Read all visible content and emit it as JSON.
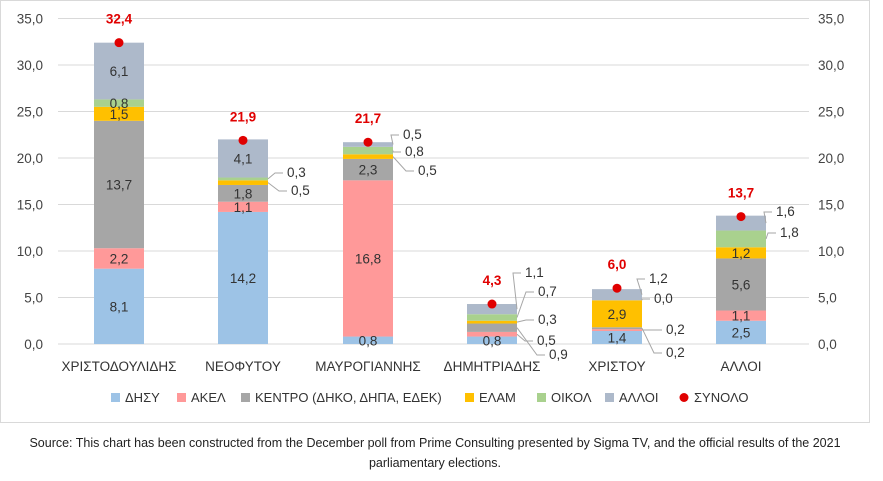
{
  "chart_data": {
    "type": "bar",
    "stacked": true,
    "title": "",
    "categories": [
      "ΧΡΙΣΤΟΔΟΥΛΙΔΗΣ",
      "ΝΕΟΦΥΤΟΥ",
      "ΜΑΥΡΟΓΙΑΝΝΗΣ",
      "ΔΗΜΗΤΡΙΑΔΗΣ",
      "ΧΡΙΣΤΟΥ",
      "ΑΛΛΟΙ"
    ],
    "series": [
      {
        "name": "ΔΗΣΥ",
        "color": "#9dc3e6",
        "values": [
          8.1,
          14.2,
          0.8,
          0.8,
          1.4,
          2.5
        ],
        "labels": [
          "8,1",
          "14,2",
          "0,8",
          "0,8",
          "1,4",
          "2,5"
        ]
      },
      {
        "name": "ΑΚΕΛ",
        "color": "#ff9999",
        "values": [
          2.2,
          1.1,
          16.8,
          0.5,
          0.2,
          1.1
        ],
        "labels": [
          "2,2",
          "1,1",
          "16,8",
          "0,5",
          "0,2",
          "1,1"
        ]
      },
      {
        "name": "ΚΕΝΤΡΟ (ΔΗΚΟ, ΔΗΠΑ, ΕΔΕΚ)",
        "color": "#a6a6a6",
        "values": [
          13.7,
          1.8,
          2.3,
          0.9,
          0.2,
          5.6
        ],
        "labels": [
          "13,7",
          "1,8",
          "2,3",
          "0,9",
          "0,2",
          "5,6"
        ]
      },
      {
        "name": "ΕΛΑΜ",
        "color": "#ffc000",
        "values": [
          1.5,
          0.5,
          0.5,
          0.3,
          2.9,
          1.2
        ],
        "labels": [
          "1,5",
          "0,5",
          "0,5",
          "0,3",
          "2,9",
          "1,2"
        ]
      },
      {
        "name": "ΟΙΚΟΛ",
        "color": "#a9d18e",
        "values": [
          0.8,
          0.3,
          0.8,
          0.7,
          0.0,
          1.8
        ],
        "labels": [
          "0,8",
          "0,3",
          "0,8",
          "0,7",
          "0,0",
          "1,8"
        ]
      },
      {
        "name": "ΑΛΛΟΙ",
        "color": "#adb9ca",
        "values": [
          6.1,
          4.1,
          0.5,
          1.1,
          1.2,
          1.6
        ],
        "labels": [
          "6,1",
          "4,1",
          "0,5",
          "1,1",
          "1,2",
          "1,6"
        ]
      }
    ],
    "totals": {
      "name": "ΣΥΝΟΛΟ",
      "color": "#e00000",
      "values": [
        32.4,
        21.9,
        21.7,
        4.3,
        6.0,
        13.7
      ],
      "labels": [
        "32,4",
        "21,9",
        "21,7",
        "4,3",
        "6,0",
        "13,7"
      ]
    },
    "ylim": [
      0,
      35
    ],
    "yticks": [
      0,
      5,
      10,
      15,
      20,
      25,
      30,
      35
    ],
    "ytick_labels": [
      "0,0",
      "5,0",
      "10,0",
      "15,0",
      "20,0",
      "25,0",
      "30,0",
      "35,0"
    ],
    "secondary_y_axis": true,
    "grid": true,
    "legend_position": "bottom"
  },
  "source_note": "Source: This chart has been constructed from the December poll from Prime Consulting presented by Sigma TV, and the official results of the 2021 parliamentary elections."
}
